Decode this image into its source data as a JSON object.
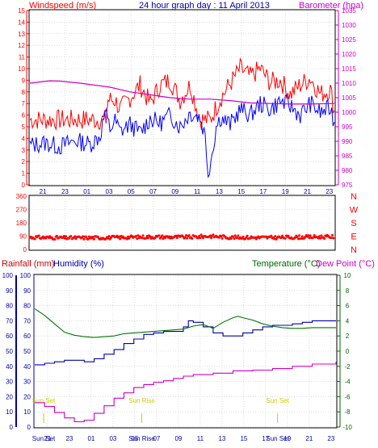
{
  "title": "24 hour graph day : 11 April 2013",
  "colors": {
    "wind": "#ff0000",
    "gust": "#0000ff",
    "barometer": "#cc00cc",
    "direction": "#ff0000",
    "rain": "#cc0000",
    "humidity": "#0000aa",
    "temperature": "#007700",
    "dewpoint": "#cc00cc",
    "sun": "#cccc00",
    "grid": "#c8c8c8",
    "axis_left_red": "#ff0000",
    "axis_blue": "#0000aa",
    "axis_green": "#006600",
    "axis_purple": "#cc00cc"
  },
  "chart_data": [
    {
      "type": "line",
      "title": "24 hour graph day : 11 April 2013",
      "ylabel": "Windspeed (m/s)",
      "y2label": "Barometer (hpa)",
      "ylim": [
        0,
        15
      ],
      "y2lim": [
        975,
        1035
      ],
      "yticks": [
        0,
        1,
        2,
        3,
        4,
        5,
        6,
        7,
        8,
        9,
        10,
        11,
        12,
        13,
        14,
        15
      ],
      "y2ticks": [
        975,
        980,
        985,
        990,
        995,
        1000,
        1005,
        1010,
        1015,
        1020,
        1025,
        1030,
        1035
      ],
      "x_ticks": [
        "21",
        "23",
        "01",
        "03",
        "05",
        "07",
        "09",
        "11",
        "13",
        "15",
        "17",
        "19",
        "21",
        "23"
      ],
      "grid": true,
      "series": [
        {
          "axis": "left",
          "points": [
            [
              0,
              3.4
            ],
            [
              1.5,
              3.6
            ],
            [
              3,
              3.3
            ],
            [
              4.5,
              3.8
            ],
            [
              6,
              3.5
            ],
            [
              7,
              4.2
            ],
            [
              7.5,
              6.2
            ],
            [
              8,
              4.8
            ],
            [
              8.5,
              5.5
            ],
            [
              9,
              4.6
            ],
            [
              10,
              5.2
            ],
            [
              11,
              4.5
            ],
            [
              12,
              5.7
            ],
            [
              13,
              5.3
            ],
            [
              14,
              6.0
            ],
            [
              15,
              5.0
            ],
            [
              16,
              6.2
            ],
            [
              17,
              5.8
            ],
            [
              17.5,
              4.2
            ],
            [
              17.8,
              1.0
            ],
            [
              18.2,
              2.8
            ],
            [
              18.6,
              5.0
            ],
            [
              19,
              5.8
            ],
            [
              20,
              5.2
            ],
            [
              21,
              6.5
            ],
            [
              22,
              6.0
            ],
            [
              23,
              7.0
            ],
            [
              24,
              6.5
            ],
            [
              25,
              7.2
            ],
            [
              26,
              6.8
            ],
            [
              27,
              6.0
            ],
            [
              28,
              7.0
            ],
            [
              29,
              6.2
            ],
            [
              30,
              6.6
            ],
            [
              30.4,
              5.4
            ]
          ]
        },
        {
          "axis": "left",
          "points": [
            [
              0,
              5.6
            ],
            [
              7.6,
              5.6
            ],
            [
              7.8,
              7.3
            ],
            [
              8.5,
              7.3
            ],
            [
              9,
              6.5
            ],
            [
              10,
              7.5
            ],
            [
              11,
              8.6
            ],
            [
              12,
              7.0
            ],
            [
              13,
              8.6
            ],
            [
              14,
              9.0
            ],
            [
              15,
              7.3
            ],
            [
              16,
              8.6
            ],
            [
              17,
              5.6
            ],
            [
              18,
              5.6
            ],
            [
              19,
              7.4
            ],
            [
              20,
              8.7
            ],
            [
              21,
              10.0
            ],
            [
              22,
              9.3
            ],
            [
              23,
              10.0
            ],
            [
              24,
              8.8
            ],
            [
              25,
              9.0
            ],
            [
              26,
              7.8
            ],
            [
              27,
              8.6
            ],
            [
              28,
              9.2
            ],
            [
              29,
              7.8
            ],
            [
              30,
              8.2
            ],
            [
              30.4,
              6.4
            ]
          ]
        },
        {
          "axis": "right",
          "points": [
            [
              0,
              1010
            ],
            [
              2,
              1010.8
            ],
            [
              3,
              1010.7
            ],
            [
              5,
              1010
            ],
            [
              8,
              1008.6
            ],
            [
              10,
              1007
            ],
            [
              12,
              1006
            ],
            [
              14,
              1005
            ],
            [
              16,
              1004.5
            ],
            [
              18,
              1004.5
            ],
            [
              20,
              1004
            ],
            [
              22,
              1003.2
            ],
            [
              24,
              1003
            ],
            [
              26,
              1002.8
            ],
            [
              28,
              1002.8
            ],
            [
              30.4,
              1003
            ]
          ]
        }
      ]
    },
    {
      "type": "scatter",
      "ylabel_letters": [
        "N",
        "W",
        "S",
        "E",
        "N"
      ],
      "ylim": [
        0,
        360
      ],
      "yticks": [
        0,
        90,
        180,
        270,
        360
      ],
      "x_ticks": [
        "21",
        "23",
        "01",
        "03",
        "05",
        "07",
        "09",
        "11",
        "13",
        "15",
        "17",
        "19",
        "21",
        "23"
      ],
      "grid": true,
      "series": [
        {
          "points": [
            [
              0,
              82
            ],
            [
              4,
              78
            ],
            [
              8,
              80
            ],
            [
              12,
              85
            ],
            [
              16,
              83
            ],
            [
              18,
              90
            ],
            [
              20,
              82
            ],
            [
              24,
              80
            ],
            [
              28,
              84
            ],
            [
              30.4,
              86
            ]
          ],
          "spread": 12
        }
      ]
    },
    {
      "type": "line",
      "ylabel": "Rainfall (mm)",
      "ylabel2": "Humidity (%)",
      "y2label": "Temperature (°C)",
      "y2label2": "Dew Point (°C)",
      "ylim": [
        0,
        100
      ],
      "y2lim": [
        -10,
        10
      ],
      "yticks": [
        0,
        10,
        20,
        30,
        40,
        50,
        60,
        70,
        80,
        90,
        100
      ],
      "y2ticks": [
        -10,
        -8,
        -6,
        -4,
        -2,
        0,
        2,
        4,
        6,
        8,
        10
      ],
      "x_ticks": [
        "21",
        "23",
        "01",
        "03",
        "05",
        "07",
        "09",
        "11",
        "13",
        "15",
        "17",
        "19",
        "21",
        "23"
      ],
      "x_labels_extra": [
        {
          "text": "Sun Set",
          "x": 0.9
        },
        {
          "text": "Sun Rise",
          "x": 10.8
        },
        {
          "text": "Sun Set",
          "x": 24.5
        }
      ],
      "sun_markers": [
        {
          "label": "Sun Set",
          "x": 0.9
        },
        {
          "label": "Sun Rise",
          "x": 10.8
        },
        {
          "label": "Sun Set",
          "x": 24.5
        }
      ],
      "grid": true,
      "series": [
        {
          "axis": "left",
          "points": [
            [
              0,
              41
            ],
            [
              1,
              42
            ],
            [
              2,
              43
            ],
            [
              3,
              44
            ],
            [
              4,
              44
            ],
            [
              5,
              43
            ],
            [
              6,
              45
            ],
            [
              7,
              48
            ],
            [
              8,
              51
            ],
            [
              9,
              55
            ],
            [
              10,
              58
            ],
            [
              11,
              61
            ],
            [
              12,
              62
            ],
            [
              13,
              63
            ],
            [
              14,
              63
            ],
            [
              15,
              66
            ],
            [
              15.5,
              70
            ],
            [
              16,
              69
            ],
            [
              17,
              66
            ],
            [
              18,
              62
            ],
            [
              19,
              60
            ],
            [
              20,
              60
            ],
            [
              21,
              62
            ],
            [
              22,
              64
            ],
            [
              23,
              66
            ],
            [
              24,
              67
            ],
            [
              25,
              67
            ],
            [
              26,
              68
            ],
            [
              27,
              69
            ],
            [
              28,
              70
            ],
            [
              30.4,
              70
            ]
          ]
        },
        {
          "axis": "right",
          "points": [
            [
              0,
              5.6
            ],
            [
              1,
              4.7
            ],
            [
              2,
              3.6
            ],
            [
              3,
              2.5
            ],
            [
              4,
              2.1
            ],
            [
              5,
              1.9
            ],
            [
              6,
              1.8
            ],
            [
              7,
              1.9
            ],
            [
              8,
              2.0
            ],
            [
              9,
              2.3
            ],
            [
              10,
              2.4
            ],
            [
              12,
              2.6
            ],
            [
              14,
              2.8
            ],
            [
              15,
              2.9
            ],
            [
              16,
              3.3
            ],
            [
              17,
              3.5
            ],
            [
              18,
              3.0
            ],
            [
              19,
              3.8
            ],
            [
              20,
              4.4
            ],
            [
              20.5,
              4.6
            ],
            [
              21,
              4.4
            ],
            [
              22,
              4.1
            ],
            [
              23,
              3.6
            ],
            [
              24,
              3.3
            ],
            [
              25,
              3.1
            ],
            [
              26,
              3.0
            ],
            [
              27,
              3.0
            ],
            [
              28,
              3.1
            ],
            [
              30.4,
              3.1
            ]
          ]
        },
        {
          "axis": "right",
          "points": [
            [
              0,
              -6.8
            ],
            [
              1,
              -7.3
            ],
            [
              2,
              -8.1
            ],
            [
              3,
              -8.8
            ],
            [
              4,
              -9.3
            ],
            [
              5,
              -9.1
            ],
            [
              6,
              -8.2
            ],
            [
              7,
              -7.2
            ],
            [
              8,
              -6.2
            ],
            [
              9,
              -5.5
            ],
            [
              10,
              -4.8
            ],
            [
              11,
              -4.4
            ],
            [
              12,
              -4.1
            ],
            [
              13,
              -3.9
            ],
            [
              14,
              -3.6
            ],
            [
              15,
              -3.3
            ],
            [
              16,
              -3.1
            ],
            [
              18,
              -2.9
            ],
            [
              20,
              -2.6
            ],
            [
              22,
              -2.5
            ],
            [
              24,
              -2.3
            ],
            [
              26,
              -2.0
            ],
            [
              28,
              -1.7
            ],
            [
              30.4,
              -1.4
            ]
          ]
        }
      ]
    }
  ]
}
